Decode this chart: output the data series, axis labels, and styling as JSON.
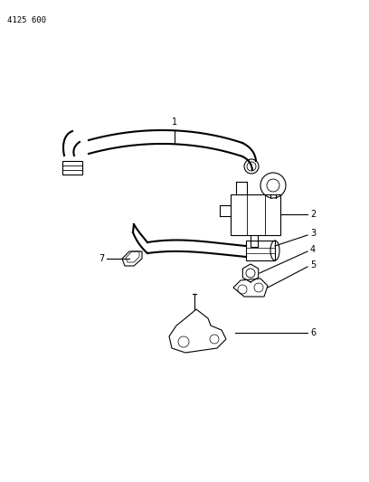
{
  "title": "4125 600",
  "bg_color": "#ffffff",
  "line_color": "#000000",
  "fig_width": 4.08,
  "fig_height": 5.33,
  "dpi": 100,
  "label_fontsize": 7,
  "header_fontsize": 6.5
}
